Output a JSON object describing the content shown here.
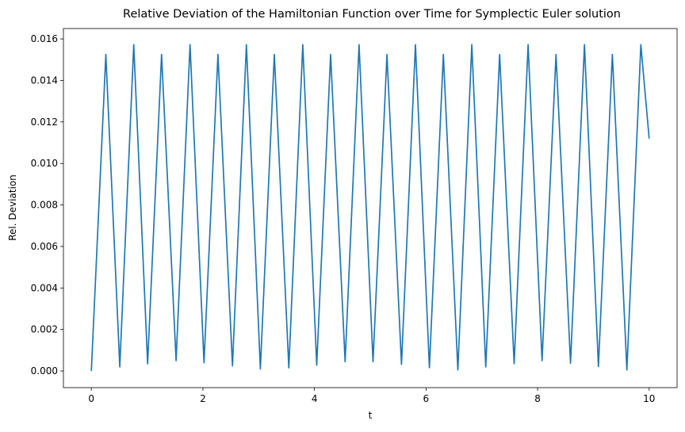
{
  "chart_data": {
    "type": "line",
    "title": "Relative Deviation of the Hamiltonian Function over Time for Symplectic Euler solution",
    "xlabel": "t",
    "ylabel": "Rel. Deviation",
    "xlim": [
      -0.5,
      10.5
    ],
    "ylim": [
      -0.0008,
      0.0165
    ],
    "grid": false,
    "x_ticks": [
      0,
      2,
      4,
      6,
      8,
      10
    ],
    "x_tick_labels": [
      "0",
      "2",
      "4",
      "6",
      "8",
      "10"
    ],
    "y_ticks": [
      0.0,
      0.002,
      0.004,
      0.006,
      0.008,
      0.01,
      0.012,
      0.014,
      0.016
    ],
    "y_tick_labels": [
      "0.000",
      "0.002",
      "0.004",
      "0.006",
      "0.008",
      "0.010",
      "0.012",
      "0.014",
      "0.016"
    ],
    "series": [
      {
        "color": "#1f77b4",
        "x": [
          0.0,
          0.26,
          0.51,
          0.76,
          1.01,
          1.26,
          1.52,
          1.77,
          2.02,
          2.27,
          2.53,
          2.78,
          3.03,
          3.28,
          3.54,
          3.79,
          4.04,
          4.29,
          4.55,
          4.8,
          5.05,
          5.3,
          5.56,
          5.81,
          6.06,
          6.31,
          6.57,
          6.82,
          7.07,
          7.32,
          7.58,
          7.83,
          8.08,
          8.33,
          8.59,
          8.84,
          9.09,
          9.34,
          9.6,
          9.85,
          10.0
        ],
        "y": [
          0.0,
          0.01525,
          0.0002,
          0.01572,
          0.00035,
          0.01525,
          0.0005,
          0.01572,
          0.0004,
          0.01525,
          0.00025,
          0.01572,
          0.0001,
          0.01525,
          0.00015,
          0.01572,
          0.00028,
          0.01525,
          0.00045,
          0.01572,
          0.00045,
          0.01525,
          0.00032,
          0.01572,
          0.00016,
          0.01525,
          5e-05,
          0.01572,
          0.0002,
          0.01525,
          0.00035,
          0.01572,
          0.0005,
          0.01525,
          0.00038,
          0.01572,
          0.00022,
          0.01525,
          5e-05,
          0.01572,
          0.0112
        ]
      }
    ]
  }
}
